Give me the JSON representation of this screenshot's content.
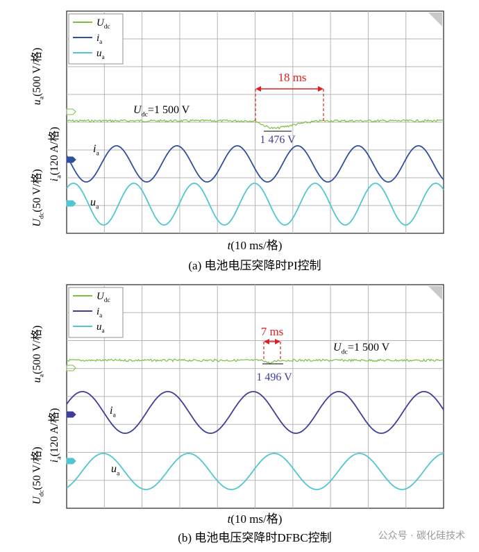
{
  "panels": [
    {
      "caption": "(a) 电池电压突降时PI控制",
      "xlabel": "t(10 ms/格)",
      "ylabels": [
        "u",
        "a",
        "(500 V/格)",
        "i",
        "a",
        "(120 A/格)",
        "U",
        "dc",
        "(50 V/格)"
      ],
      "legend": [
        {
          "main": "U",
          "sub": "dc",
          "color": "#7ac143"
        },
        {
          "main": "i",
          "sub": "a",
          "color": "#2e4e9e"
        },
        {
          "main": "u",
          "sub": "a",
          "color": "#4fc6d0"
        }
      ],
      "udc_label": {
        "main": "U",
        "sub": "dc",
        "rest": "=1 500 V"
      },
      "ia_label": {
        "main": "i",
        "sub": "a"
      },
      "ua_label": {
        "main": "u",
        "sub": "a"
      },
      "dip_label": "1 476 V",
      "duration_label": "18 ms"
    },
    {
      "caption": "(b) 电池电压突降时DFBC控制",
      "xlabel": "t(10 ms/格)",
      "ylabels": [
        "u",
        "a",
        "(500 V/格)",
        "i",
        "a",
        "(120 A/格)",
        "U",
        "dc",
        "(50 V/格)"
      ],
      "legend": [
        {
          "main": "U",
          "sub": "dc",
          "color": "#7ac143"
        },
        {
          "main": "i",
          "sub": "a",
          "color": "#3d3d9a"
        },
        {
          "main": "u",
          "sub": "a",
          "color": "#4fc6d0"
        }
      ],
      "udc_label": {
        "main": "U",
        "sub": "dc",
        "rest": "=1 500 V"
      },
      "ia_label": {
        "main": "i",
        "sub": "a"
      },
      "ua_label": {
        "main": "u",
        "sub": "a"
      },
      "dip_label": "1 496 V",
      "duration_label": "7 ms"
    }
  ],
  "watermark": "公众号 · 碳化硅技术",
  "chart_data": [
    {
      "type": "line",
      "x_division": "10 ms/格",
      "x_divisions": 10,
      "y_divisions": 8,
      "series": [
        {
          "name": "Udc",
          "unit": "V",
          "scale_per_div": 50,
          "steady": 1500,
          "dip_min": 1476,
          "dip_start_div": 5.05,
          "dip_min_div": 5.55,
          "dip_end_div": 6.85,
          "recovery_ms": 18
        },
        {
          "name": "ia",
          "unit": "A",
          "scale_per_div": 120,
          "period_div": 2,
          "amplitude_div": 0.95
        },
        {
          "name": "ua",
          "unit": "V",
          "scale_per_div": 500,
          "period_div": 2,
          "amplitude_div": 1.1
        }
      ],
      "colors": {
        "Udc": "#7ac143",
        "ia": "#2e4e9e",
        "ua": "#4fc6d0"
      }
    },
    {
      "type": "line",
      "x_division": "10 ms/格",
      "x_divisions": 10,
      "y_divisions": 8,
      "series": [
        {
          "name": "Udc",
          "unit": "V",
          "scale_per_div": 50,
          "steady": 1500,
          "dip_min": 1496,
          "dip_start_div": 5.2,
          "dip_min_div": 5.4,
          "dip_end_div": 5.6,
          "recovery_ms": 7
        },
        {
          "name": "ia",
          "unit": "A",
          "scale_per_div": 120,
          "period_div": 2.8,
          "amplitude_div": 1.1
        },
        {
          "name": "ua",
          "unit": "V",
          "scale_per_div": 500,
          "period_div": 2.8,
          "amplitude_div": 0.95
        }
      ],
      "colors": {
        "Udc": "#7ac143",
        "ia": "#3d3d9a",
        "ua": "#4fc6d0"
      }
    }
  ]
}
